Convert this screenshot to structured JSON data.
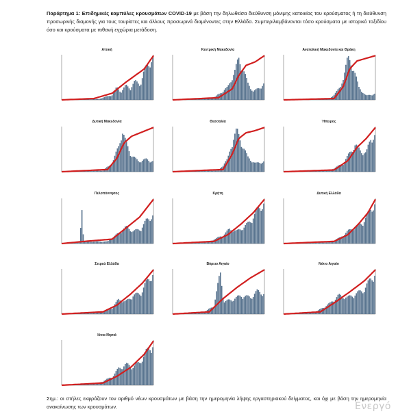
{
  "caption": {
    "lead": "Παράρτημα 1: Επιδημικές καμπύλες κρουσμάτων COVID-19",
    "text": " με βάση την δηλωθείσα διεύθυνση μόνιμης κατοικίας του κρούσματος ή τη διεύθυνση προσωρινής διαμονής για τους τουρίστες και άλλους προσωρινά διαμένοντες στην Ελλάδα. Συμπεριλαμβάνονται τόσο κρούσματα με ιστορικό ταξιδίου όσο και κρούσματα με πιθανή εγχώρια μετάδοση."
  },
  "note": "Σημ.: οι στήλες εκφράζουν τον αριθμό νέων κρουσμάτων με βάση την ημερομηνία λήψης εργαστηριακού δείγματος, και όχι με βάση την ημερομηνία ανακοίνωσης των κρουσμάτων.",
  "watermark": "Ενεργό",
  "colors": {
    "bars": "#5a7590",
    "line": "#d11f1f",
    "axis": "#555555"
  },
  "chart_data": [
    {
      "type": "bar",
      "title": "Αττική",
      "bar_max": 1000,
      "cum_max": 1,
      "bar_profile": [
        [
          0,
          0
        ],
        [
          0.4,
          0.02
        ],
        [
          0.55,
          0.12
        ],
        [
          0.6,
          0.3
        ],
        [
          0.65,
          0.2
        ],
        [
          0.7,
          0.35
        ],
        [
          0.75,
          0.28
        ],
        [
          0.8,
          0.45
        ],
        [
          0.86,
          0.38
        ],
        [
          0.9,
          0.7
        ],
        [
          0.95,
          0.9
        ],
        [
          1,
          1
        ]
      ],
      "cum_profile": [
        [
          0,
          0
        ],
        [
          0.35,
          0.03
        ],
        [
          0.55,
          0.15
        ],
        [
          0.7,
          0.4
        ],
        [
          0.8,
          0.55
        ],
        [
          0.9,
          0.7
        ],
        [
          1,
          1
        ]
      ]
    },
    {
      "type": "bar",
      "title": "Κεντρική Μακεδονία",
      "bar_max": 1000,
      "cum_max": 1,
      "bar_profile": [
        [
          0,
          0
        ],
        [
          0.45,
          0.05
        ],
        [
          0.6,
          0.3
        ],
        [
          0.68,
          0.7
        ],
        [
          0.72,
          1
        ],
        [
          0.76,
          0.8
        ],
        [
          0.82,
          0.4
        ],
        [
          0.88,
          0.2
        ],
        [
          0.95,
          0.3
        ],
        [
          1,
          0.4
        ]
      ],
      "cum_profile": [
        [
          0,
          0
        ],
        [
          0.5,
          0.05
        ],
        [
          0.65,
          0.25
        ],
        [
          0.72,
          0.55
        ],
        [
          0.8,
          0.78
        ],
        [
          0.9,
          0.86
        ],
        [
          1,
          1
        ]
      ]
    },
    {
      "type": "bar",
      "title": "Ανατολική Μακεδονία και Θράκη",
      "bar_max": 1000,
      "cum_max": 1,
      "bar_profile": [
        [
          0,
          0
        ],
        [
          0.5,
          0.02
        ],
        [
          0.62,
          0.3
        ],
        [
          0.7,
          1
        ],
        [
          0.76,
          0.8
        ],
        [
          0.82,
          0.3
        ],
        [
          0.9,
          0.1
        ],
        [
          1,
          0.15
        ]
      ],
      "cum_profile": [
        [
          0,
          0
        ],
        [
          0.55,
          0.03
        ],
        [
          0.65,
          0.3
        ],
        [
          0.72,
          0.7
        ],
        [
          0.8,
          0.88
        ],
        [
          0.9,
          0.94
        ],
        [
          1,
          1
        ]
      ]
    },
    {
      "type": "bar",
      "title": "Δυτική Μακεδονία",
      "bar_max": 1000,
      "cum_max": 1,
      "bar_profile": [
        [
          0,
          0
        ],
        [
          0.45,
          0.03
        ],
        [
          0.55,
          0.2
        ],
        [
          0.62,
          0.6
        ],
        [
          0.66,
          1
        ],
        [
          0.7,
          0.7
        ],
        [
          0.76,
          0.4
        ],
        [
          0.84,
          0.25
        ],
        [
          0.92,
          0.3
        ],
        [
          1,
          0.25
        ]
      ],
      "cum_profile": [
        [
          0,
          0
        ],
        [
          0.5,
          0.05
        ],
        [
          0.6,
          0.3
        ],
        [
          0.68,
          0.65
        ],
        [
          0.76,
          0.8
        ],
        [
          0.88,
          0.9
        ],
        [
          1,
          1
        ]
      ]
    },
    {
      "type": "bar",
      "title": "Θεσσαλία",
      "bar_max": 1000,
      "cum_max": 1,
      "bar_profile": [
        [
          0,
          0
        ],
        [
          0.5,
          0.03
        ],
        [
          0.6,
          0.3
        ],
        [
          0.66,
          0.8
        ],
        [
          0.7,
          1
        ],
        [
          0.75,
          0.7
        ],
        [
          0.82,
          0.35
        ],
        [
          0.9,
          0.2
        ],
        [
          1,
          0.25
        ]
      ],
      "cum_profile": [
        [
          0,
          0
        ],
        [
          0.55,
          0.05
        ],
        [
          0.65,
          0.4
        ],
        [
          0.72,
          0.75
        ],
        [
          0.8,
          0.88
        ],
        [
          0.9,
          0.93
        ],
        [
          1,
          1
        ]
      ]
    },
    {
      "type": "bar",
      "title": "Ήπειρος",
      "bar_max": 1000,
      "cum_max": 1,
      "bar_profile": [
        [
          0,
          0
        ],
        [
          0.5,
          0.03
        ],
        [
          0.65,
          0.2
        ],
        [
          0.72,
          0.45
        ],
        [
          0.78,
          0.65
        ],
        [
          0.84,
          0.5
        ],
        [
          0.9,
          0.45
        ],
        [
          0.95,
          0.8
        ],
        [
          1,
          0.9
        ]
      ],
      "cum_profile": [
        [
          0,
          0
        ],
        [
          0.55,
          0.04
        ],
        [
          0.7,
          0.25
        ],
        [
          0.8,
          0.55
        ],
        [
          0.9,
          0.75
        ],
        [
          1,
          1
        ]
      ]
    },
    {
      "type": "bar",
      "title": "Πελοπόννησος",
      "bar_max": 1000,
      "cum_max": 1,
      "bar_profile": [
        [
          0,
          0
        ],
        [
          0.2,
          0.05
        ],
        [
          0.22,
          1
        ],
        [
          0.24,
          0.05
        ],
        [
          0.5,
          0.05
        ],
        [
          0.62,
          0.25
        ],
        [
          0.7,
          0.4
        ],
        [
          0.78,
          0.3
        ],
        [
          0.86,
          0.35
        ],
        [
          0.92,
          0.55
        ],
        [
          1,
          0.7
        ]
      ],
      "cum_profile": [
        [
          0,
          0
        ],
        [
          0.25,
          0.05
        ],
        [
          0.55,
          0.1
        ],
        [
          0.7,
          0.35
        ],
        [
          0.85,
          0.6
        ],
        [
          1,
          1
        ]
      ]
    },
    {
      "type": "bar",
      "title": "Κρήτη",
      "bar_max": 1000,
      "cum_max": 1,
      "bar_profile": [
        [
          0,
          0
        ],
        [
          0.4,
          0.05
        ],
        [
          0.55,
          0.2
        ],
        [
          0.62,
          0.35
        ],
        [
          0.7,
          0.3
        ],
        [
          0.78,
          0.4
        ],
        [
          0.85,
          0.55
        ],
        [
          0.92,
          0.8
        ],
        [
          1,
          1
        ]
      ],
      "cum_profile": [
        [
          0,
          0
        ],
        [
          0.45,
          0.05
        ],
        [
          0.6,
          0.2
        ],
        [
          0.75,
          0.45
        ],
        [
          0.88,
          0.7
        ],
        [
          1,
          1
        ]
      ]
    },
    {
      "type": "bar",
      "title": "Δυτική Ελλάδα",
      "bar_max": 1000,
      "cum_max": 1,
      "bar_profile": [
        [
          0,
          0
        ],
        [
          0.5,
          0.03
        ],
        [
          0.62,
          0.15
        ],
        [
          0.7,
          0.3
        ],
        [
          0.78,
          0.4
        ],
        [
          0.86,
          0.5
        ],
        [
          0.93,
          0.75
        ],
        [
          1,
          1
        ]
      ],
      "cum_profile": [
        [
          0,
          0
        ],
        [
          0.55,
          0.05
        ],
        [
          0.7,
          0.2
        ],
        [
          0.82,
          0.45
        ],
        [
          0.92,
          0.7
        ],
        [
          1,
          1
        ]
      ]
    },
    {
      "type": "bar",
      "title": "Στερεά Ελλάδα",
      "bar_max": 1000,
      "cum_max": 1,
      "bar_profile": [
        [
          0,
          0
        ],
        [
          0.4,
          0.03
        ],
        [
          0.55,
          0.15
        ],
        [
          0.62,
          0.35
        ],
        [
          0.7,
          0.3
        ],
        [
          0.78,
          0.45
        ],
        [
          0.86,
          0.5
        ],
        [
          0.92,
          0.75
        ],
        [
          1,
          1
        ]
      ],
      "cum_profile": [
        [
          0,
          0
        ],
        [
          0.45,
          0.05
        ],
        [
          0.6,
          0.2
        ],
        [
          0.75,
          0.45
        ],
        [
          0.88,
          0.7
        ],
        [
          1,
          1
        ]
      ]
    },
    {
      "type": "bar",
      "title": "Βόρειο Αιγαίο",
      "bar_max": 1000,
      "cum_max": 1,
      "bar_profile": [
        [
          0,
          0
        ],
        [
          0.35,
          0.05
        ],
        [
          0.45,
          0.2
        ],
        [
          0.52,
          1
        ],
        [
          0.56,
          0.3
        ],
        [
          0.65,
          0.35
        ],
        [
          0.75,
          0.45
        ],
        [
          0.85,
          0.4
        ],
        [
          0.92,
          0.55
        ],
        [
          1,
          0.5
        ]
      ],
      "cum_profile": [
        [
          0,
          0
        ],
        [
          0.4,
          0.05
        ],
        [
          0.55,
          0.35
        ],
        [
          0.7,
          0.6
        ],
        [
          0.85,
          0.82
        ],
        [
          1,
          1
        ]
      ]
    },
    {
      "type": "bar",
      "title": "Νότιο Αιγαίο",
      "bar_max": 1000,
      "cum_max": 1,
      "bar_profile": [
        [
          0,
          0
        ],
        [
          0.35,
          0.05
        ],
        [
          0.5,
          0.25
        ],
        [
          0.6,
          0.45
        ],
        [
          0.7,
          0.4
        ],
        [
          0.8,
          0.5
        ],
        [
          0.88,
          0.6
        ],
        [
          0.95,
          0.85
        ],
        [
          1,
          1
        ]
      ],
      "cum_profile": [
        [
          0,
          0
        ],
        [
          0.4,
          0.05
        ],
        [
          0.55,
          0.25
        ],
        [
          0.72,
          0.5
        ],
        [
          0.88,
          0.75
        ],
        [
          1,
          1
        ]
      ]
    },
    {
      "type": "bar",
      "title": "Ιόνια Νησιά",
      "bar_max": 1000,
      "cum_max": 1,
      "bar_profile": [
        [
          0,
          0
        ],
        [
          0.4,
          0.05
        ],
        [
          0.55,
          0.2
        ],
        [
          0.62,
          0.4
        ],
        [
          0.7,
          0.5
        ],
        [
          0.78,
          0.45
        ],
        [
          0.85,
          0.55
        ],
        [
          0.92,
          0.8
        ],
        [
          1,
          1
        ]
      ],
      "cum_profile": [
        [
          0,
          0
        ],
        [
          0.45,
          0.05
        ],
        [
          0.6,
          0.2
        ],
        [
          0.75,
          0.4
        ],
        [
          0.9,
          0.7
        ],
        [
          1,
          1
        ]
      ]
    }
  ]
}
